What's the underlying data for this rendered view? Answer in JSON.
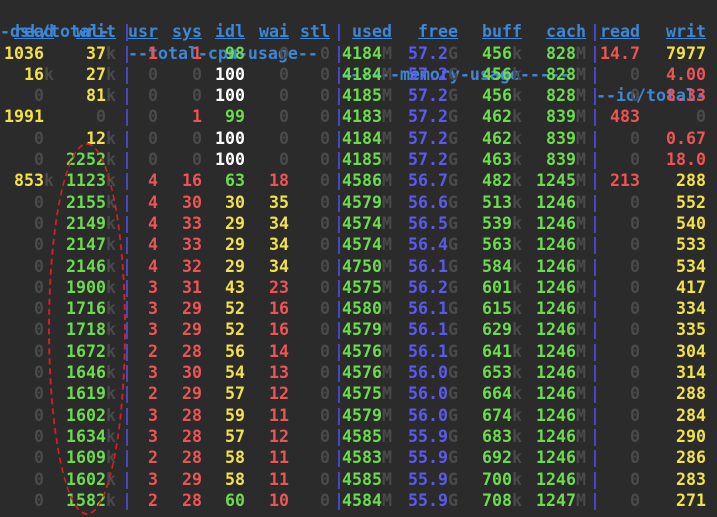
{
  "group_headers": {
    "dsk": "-dsk/total-",
    "cpu": "--total-cpu-usage--",
    "memory": "------memory-usage-----",
    "io": "--io/total-"
  },
  "columns": [
    "read",
    "writ",
    "usr",
    "sys",
    "idl",
    "wai",
    "stl",
    "used",
    "free",
    "buff",
    "cach",
    "read",
    "writ"
  ],
  "colors": {
    "background": "#2b2b2b",
    "header_blue": "#3e86d6",
    "separator_blue": "#4a4ad0",
    "yellow": "#f2e24a",
    "green": "#6cdc4c",
    "red": "#ee5454",
    "blue_value": "#5a5af0",
    "white": "#ffffff",
    "dim_zero": "#4a4a4a",
    "annotation_red": "#d42020"
  },
  "rows": [
    {
      "read": "1036",
      "read_unit": "",
      "writ": "37",
      "writ_unit": "k",
      "usr": "1",
      "sys": "1",
      "idl": "98",
      "wai": "0",
      "stl": "0",
      "used": "4184",
      "used_unit": "M",
      "free": "57.2",
      "free_unit": "G",
      "buff": "456",
      "buff_unit": "k",
      "cach": "828",
      "cach_unit": "M",
      "io_read": "14.7",
      "io_writ": "7977"
    },
    {
      "read": "16",
      "read_unit": "k",
      "writ": "27",
      "writ_unit": "k",
      "usr": "0",
      "sys": "0",
      "idl": "100",
      "wai": "0",
      "stl": "0",
      "used": "4184",
      "used_unit": "M",
      "free": "57.2",
      "free_unit": "G",
      "buff": "456",
      "buff_unit": "k",
      "cach": "828",
      "cach_unit": "M",
      "io_read": "0",
      "io_writ": "4.00"
    },
    {
      "read": "0",
      "read_unit": "",
      "writ": "81",
      "writ_unit": "k",
      "usr": "0",
      "sys": "0",
      "idl": "100",
      "wai": "0",
      "stl": "0",
      "used": "4185",
      "used_unit": "M",
      "free": "57.2",
      "free_unit": "G",
      "buff": "456",
      "buff_unit": "k",
      "cach": "828",
      "cach_unit": "M",
      "io_read": "0",
      "io_writ": "8.33"
    },
    {
      "read": "1991",
      "read_unit": "",
      "writ": "0",
      "writ_unit": "",
      "usr": "0",
      "sys": "1",
      "idl": "99",
      "wai": "0",
      "stl": "0",
      "used": "4183",
      "used_unit": "M",
      "free": "57.2",
      "free_unit": "G",
      "buff": "462",
      "buff_unit": "k",
      "cach": "839",
      "cach_unit": "M",
      "io_read": "483",
      "io_writ": "0"
    },
    {
      "read": "0",
      "read_unit": "",
      "writ": "12",
      "writ_unit": "k",
      "usr": "0",
      "sys": "0",
      "idl": "100",
      "wai": "0",
      "stl": "0",
      "used": "4184",
      "used_unit": "M",
      "free": "57.2",
      "free_unit": "G",
      "buff": "462",
      "buff_unit": "k",
      "cach": "839",
      "cach_unit": "M",
      "io_read": "0",
      "io_writ": "0.67"
    },
    {
      "read": "0",
      "read_unit": "",
      "writ": "2252",
      "writ_unit": "k",
      "usr": "0",
      "sys": "0",
      "idl": "100",
      "wai": "0",
      "stl": "0",
      "used": "4185",
      "used_unit": "M",
      "free": "57.2",
      "free_unit": "G",
      "buff": "463",
      "buff_unit": "k",
      "cach": "839",
      "cach_unit": "M",
      "io_read": "0",
      "io_writ": "18.0"
    },
    {
      "read": "853",
      "read_unit": "k",
      "writ": "1123",
      "writ_unit": "k",
      "usr": "4",
      "sys": "16",
      "idl": "63",
      "wai": "18",
      "stl": "0",
      "used": "4586",
      "used_unit": "M",
      "free": "56.7",
      "free_unit": "G",
      "buff": "482",
      "buff_unit": "k",
      "cach": "1245",
      "cach_unit": "M",
      "io_read": "213",
      "io_writ": "288"
    },
    {
      "read": "0",
      "read_unit": "",
      "writ": "2155",
      "writ_unit": "k",
      "usr": "4",
      "sys": "30",
      "idl": "30",
      "wai": "35",
      "stl": "0",
      "used": "4579",
      "used_unit": "M",
      "free": "56.6",
      "free_unit": "G",
      "buff": "513",
      "buff_unit": "k",
      "cach": "1246",
      "cach_unit": "M",
      "io_read": "0",
      "io_writ": "552"
    },
    {
      "read": "0",
      "read_unit": "",
      "writ": "2149",
      "writ_unit": "k",
      "usr": "4",
      "sys": "33",
      "idl": "29",
      "wai": "34",
      "stl": "0",
      "used": "4574",
      "used_unit": "M",
      "free": "56.5",
      "free_unit": "G",
      "buff": "539",
      "buff_unit": "k",
      "cach": "1246",
      "cach_unit": "M",
      "io_read": "0",
      "io_writ": "540"
    },
    {
      "read": "0",
      "read_unit": "",
      "writ": "2147",
      "writ_unit": "k",
      "usr": "4",
      "sys": "33",
      "idl": "29",
      "wai": "34",
      "stl": "0",
      "used": "4574",
      "used_unit": "M",
      "free": "56.4",
      "free_unit": "G",
      "buff": "563",
      "buff_unit": "k",
      "cach": "1246",
      "cach_unit": "M",
      "io_read": "0",
      "io_writ": "533"
    },
    {
      "read": "0",
      "read_unit": "",
      "writ": "2146",
      "writ_unit": "k",
      "usr": "4",
      "sys": "32",
      "idl": "29",
      "wai": "34",
      "stl": "0",
      "used": "4750",
      "used_unit": "M",
      "free": "56.1",
      "free_unit": "G",
      "buff": "584",
      "buff_unit": "k",
      "cach": "1246",
      "cach_unit": "M",
      "io_read": "0",
      "io_writ": "534"
    },
    {
      "read": "0",
      "read_unit": "",
      "writ": "1900",
      "writ_unit": "k",
      "usr": "3",
      "sys": "31",
      "idl": "43",
      "wai": "23",
      "stl": "0",
      "used": "4575",
      "used_unit": "M",
      "free": "56.2",
      "free_unit": "G",
      "buff": "601",
      "buff_unit": "k",
      "cach": "1246",
      "cach_unit": "M",
      "io_read": "0",
      "io_writ": "417"
    },
    {
      "read": "0",
      "read_unit": "",
      "writ": "1716",
      "writ_unit": "k",
      "usr": "3",
      "sys": "29",
      "idl": "52",
      "wai": "16",
      "stl": "0",
      "used": "4580",
      "used_unit": "M",
      "free": "56.1",
      "free_unit": "G",
      "buff": "615",
      "buff_unit": "k",
      "cach": "1246",
      "cach_unit": "M",
      "io_read": "0",
      "io_writ": "334"
    },
    {
      "read": "0",
      "read_unit": "",
      "writ": "1718",
      "writ_unit": "k",
      "usr": "3",
      "sys": "29",
      "idl": "52",
      "wai": "16",
      "stl": "0",
      "used": "4579",
      "used_unit": "M",
      "free": "56.1",
      "free_unit": "G",
      "buff": "629",
      "buff_unit": "k",
      "cach": "1246",
      "cach_unit": "M",
      "io_read": "0",
      "io_writ": "335"
    },
    {
      "read": "0",
      "read_unit": "",
      "writ": "1672",
      "writ_unit": "k",
      "usr": "2",
      "sys": "28",
      "idl": "56",
      "wai": "14",
      "stl": "0",
      "used": "4576",
      "used_unit": "M",
      "free": "56.1",
      "free_unit": "G",
      "buff": "641",
      "buff_unit": "k",
      "cach": "1246",
      "cach_unit": "M",
      "io_read": "0",
      "io_writ": "304"
    },
    {
      "read": "0",
      "read_unit": "",
      "writ": "1646",
      "writ_unit": "k",
      "usr": "3",
      "sys": "30",
      "idl": "54",
      "wai": "13",
      "stl": "0",
      "used": "4576",
      "used_unit": "M",
      "free": "56.0",
      "free_unit": "G",
      "buff": "653",
      "buff_unit": "k",
      "cach": "1246",
      "cach_unit": "M",
      "io_read": "0",
      "io_writ": "314"
    },
    {
      "read": "0",
      "read_unit": "",
      "writ": "1619",
      "writ_unit": "k",
      "usr": "2",
      "sys": "29",
      "idl": "57",
      "wai": "12",
      "stl": "0",
      "used": "4575",
      "used_unit": "M",
      "free": "56.0",
      "free_unit": "G",
      "buff": "664",
      "buff_unit": "k",
      "cach": "1246",
      "cach_unit": "M",
      "io_read": "0",
      "io_writ": "288"
    },
    {
      "read": "0",
      "read_unit": "",
      "writ": "1602",
      "writ_unit": "k",
      "usr": "3",
      "sys": "28",
      "idl": "59",
      "wai": "11",
      "stl": "0",
      "used": "4579",
      "used_unit": "M",
      "free": "56.0",
      "free_unit": "G",
      "buff": "674",
      "buff_unit": "k",
      "cach": "1246",
      "cach_unit": "M",
      "io_read": "0",
      "io_writ": "284"
    },
    {
      "read": "0",
      "read_unit": "",
      "writ": "1634",
      "writ_unit": "k",
      "usr": "3",
      "sys": "28",
      "idl": "57",
      "wai": "12",
      "stl": "0",
      "used": "4585",
      "used_unit": "M",
      "free": "55.9",
      "free_unit": "G",
      "buff": "683",
      "buff_unit": "k",
      "cach": "1246",
      "cach_unit": "M",
      "io_read": "0",
      "io_writ": "290"
    },
    {
      "read": "0",
      "read_unit": "",
      "writ": "1609",
      "writ_unit": "k",
      "usr": "2",
      "sys": "28",
      "idl": "58",
      "wai": "11",
      "stl": "0",
      "used": "4583",
      "used_unit": "M",
      "free": "55.9",
      "free_unit": "G",
      "buff": "692",
      "buff_unit": "k",
      "cach": "1246",
      "cach_unit": "M",
      "io_read": "0",
      "io_writ": "286"
    },
    {
      "read": "0",
      "read_unit": "",
      "writ": "1602",
      "writ_unit": "k",
      "usr": "3",
      "sys": "29",
      "idl": "58",
      "wai": "11",
      "stl": "0",
      "used": "4585",
      "used_unit": "M",
      "free": "55.9",
      "free_unit": "G",
      "buff": "700",
      "buff_unit": "k",
      "cach": "1246",
      "cach_unit": "M",
      "io_read": "0",
      "io_writ": "283"
    },
    {
      "read": "0",
      "read_unit": "",
      "writ": "1582",
      "writ_unit": "k",
      "usr": "2",
      "sys": "28",
      "idl": "60",
      "wai": "10",
      "stl": "0",
      "used": "4584",
      "used_unit": "M",
      "free": "55.9",
      "free_unit": "G",
      "buff": "708",
      "buff_unit": "k",
      "cach": "1247",
      "cach_unit": "M",
      "io_read": "0",
      "io_writ": "271"
    }
  ]
}
